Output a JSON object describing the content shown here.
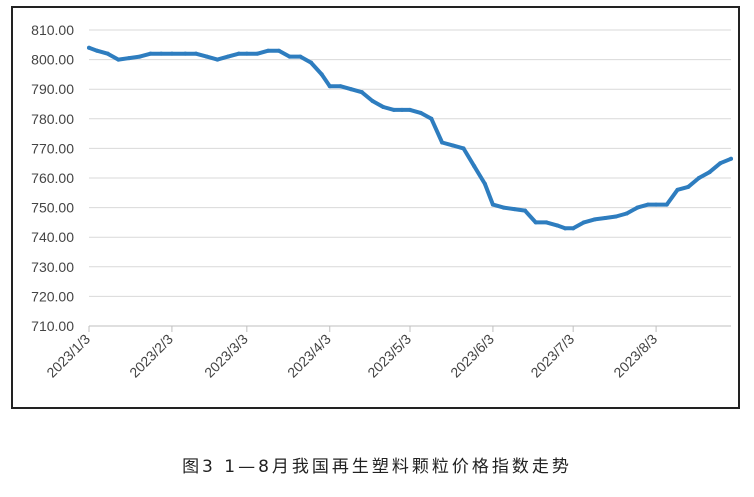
{
  "caption": "图3 1—8月我国再生塑料颗粒价格指数走势",
  "chart_data": {
    "type": "line",
    "title": "",
    "xlabel": "",
    "ylabel": "",
    "ylim": [
      710,
      810
    ],
    "y_ticks": [
      "810.00",
      "800.00",
      "790.00",
      "780.00",
      "770.00",
      "760.00",
      "750.00",
      "740.00",
      "730.00",
      "720.00",
      "710.00"
    ],
    "x_ticks": [
      "2023/1/3",
      "2023/2/3",
      "2023/3/3",
      "2023/4/3",
      "2023/5/3",
      "2023/6/3",
      "2023/7/3",
      "2023/8/3"
    ],
    "grid": "horizontal",
    "legend": "none",
    "line_color": "#2e7dbf",
    "series": [
      {
        "x": [
          "2023/1/3",
          "2023/1/6",
          "2023/1/10",
          "2023/1/14",
          "2023/1/18",
          "2023/1/22",
          "2023/1/26",
          "2023/1/30",
          "2023/2/3",
          "2023/2/8",
          "2023/2/12",
          "2023/2/16",
          "2023/2/20",
          "2023/2/24",
          "2023/2/28",
          "2023/3/3",
          "2023/3/7",
          "2023/3/11",
          "2023/3/15",
          "2023/3/19",
          "2023/3/23",
          "2023/3/27",
          "2023/3/31",
          "2023/4/3",
          "2023/4/7",
          "2023/4/11",
          "2023/4/15",
          "2023/4/19",
          "2023/4/23",
          "2023/4/27",
          "2023/4/30",
          "2023/5/3",
          "2023/5/7",
          "2023/5/11",
          "2023/5/15",
          "2023/5/19",
          "2023/5/23",
          "2023/5/27",
          "2023/5/31",
          "2023/6/3",
          "2023/6/7",
          "2023/6/11",
          "2023/6/15",
          "2023/6/19",
          "2023/6/23",
          "2023/6/27",
          "2023/6/30",
          "2023/7/3",
          "2023/7/7",
          "2023/7/11",
          "2023/7/15",
          "2023/7/19",
          "2023/7/23",
          "2023/7/27",
          "2023/7/31",
          "2023/8/3",
          "2023/8/7",
          "2023/8/11",
          "2023/8/15",
          "2023/8/19",
          "2023/8/23",
          "2023/8/27",
          "2023/8/31"
        ],
        "values": [
          804,
          803,
          802,
          800,
          800.5,
          801,
          802,
          802,
          802,
          802,
          802,
          801,
          800,
          801,
          802,
          802,
          802,
          803,
          803,
          801,
          801,
          799,
          795,
          791,
          791,
          790,
          789,
          786,
          784,
          783,
          783,
          783,
          782,
          780,
          772,
          771,
          770,
          764,
          758,
          751,
          750,
          749.5,
          749,
          745,
          745,
          744,
          743,
          743,
          745,
          746,
          746.5,
          747,
          748,
          750,
          751,
          751,
          751,
          756,
          757,
          760,
          762,
          765,
          766.5
        ]
      }
    ]
  }
}
